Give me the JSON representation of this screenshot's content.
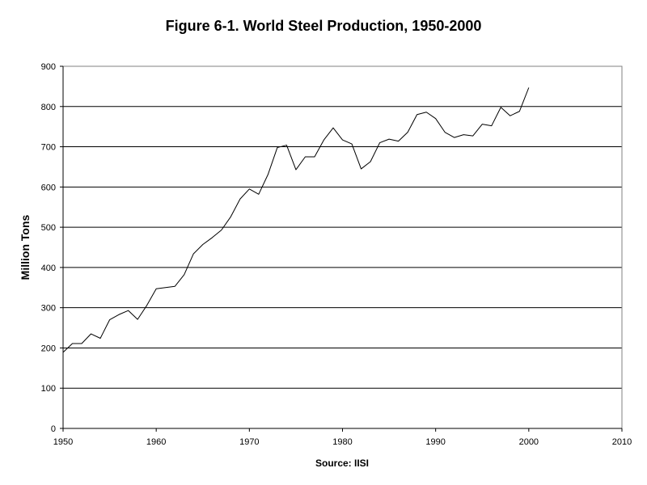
{
  "chart_data": {
    "type": "line",
    "title": "Figure 6-1. World Steel Production, 1950-2000",
    "xlabel": "Source: IISI",
    "ylabel": "Million Tons",
    "xlim": [
      1950,
      2010
    ],
    "ylim": [
      0,
      900
    ],
    "x_ticks": [
      1950,
      1960,
      1970,
      1980,
      1990,
      2000,
      2010
    ],
    "y_ticks": [
      0,
      100,
      200,
      300,
      400,
      500,
      600,
      700,
      800,
      900
    ],
    "grid": "horizontal",
    "legend": "none",
    "series": [
      {
        "color": "#000000",
        "x": [
          1950,
          1951,
          1952,
          1953,
          1954,
          1955,
          1956,
          1957,
          1958,
          1959,
          1960,
          1961,
          1962,
          1963,
          1964,
          1965,
          1966,
          1967,
          1968,
          1969,
          1970,
          1971,
          1972,
          1973,
          1974,
          1975,
          1976,
          1977,
          1978,
          1979,
          1980,
          1981,
          1982,
          1983,
          1984,
          1985,
          1986,
          1987,
          1988,
          1989,
          1990,
          1991,
          1992,
          1993,
          1994,
          1995,
          1996,
          1997,
          1998,
          1999,
          2000
        ],
        "values": [
          189,
          211,
          211,
          235,
          224,
          270,
          283,
          293,
          271,
          306,
          347,
          350,
          353,
          382,
          434,
          457,
          474,
          493,
          526,
          570,
          595,
          582,
          631,
          698,
          704,
          643,
          675,
          675,
          717,
          747,
          717,
          707,
          645,
          663,
          710,
          719,
          714,
          736,
          780,
          786,
          770,
          736,
          723,
          730,
          727,
          756,
          752,
          798,
          777,
          788,
          847
        ]
      }
    ]
  }
}
